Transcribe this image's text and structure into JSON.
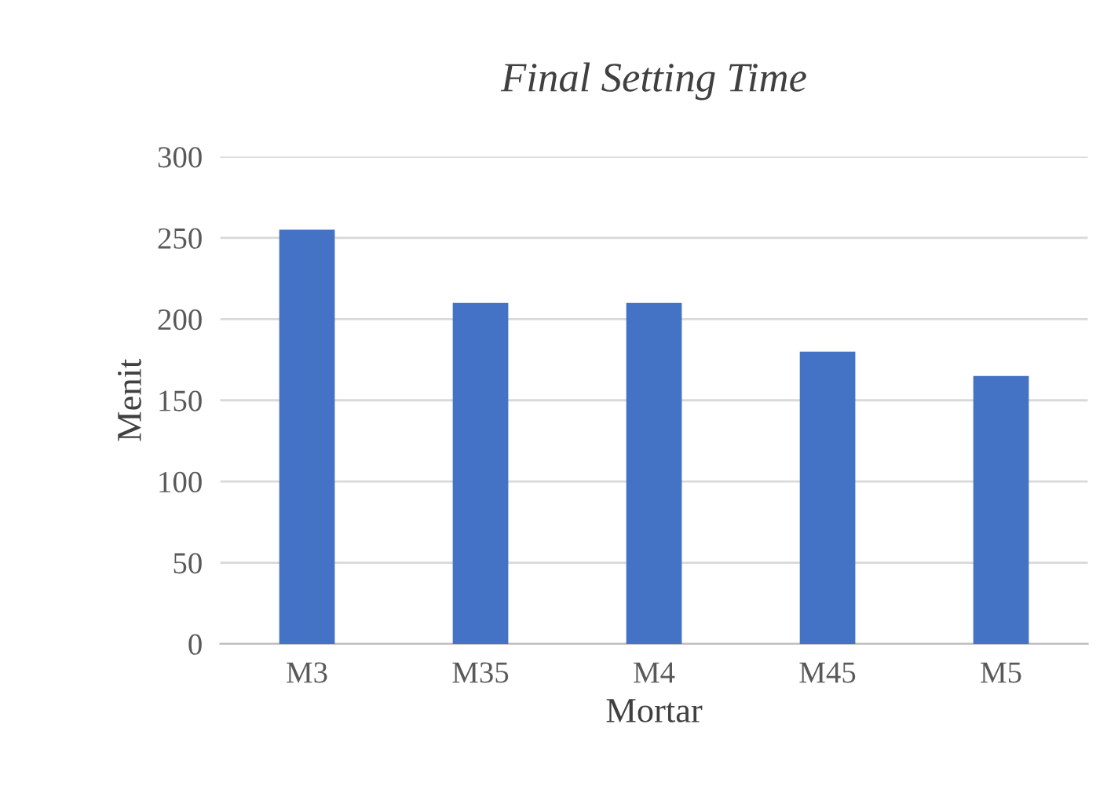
{
  "chart_data": {
    "type": "bar",
    "title": "Final Setting Time",
    "xlabel": "Mortar",
    "ylabel": "Menit",
    "categories": [
      "M3",
      "M35",
      "M4",
      "M45",
      "M5"
    ],
    "values": [
      255,
      210,
      210,
      180,
      165
    ],
    "color": "#4472c4",
    "ylim": [
      0,
      300
    ],
    "yticks": [
      0,
      50,
      100,
      150,
      200,
      250,
      300
    ],
    "grid": "y",
    "legend": false
  }
}
